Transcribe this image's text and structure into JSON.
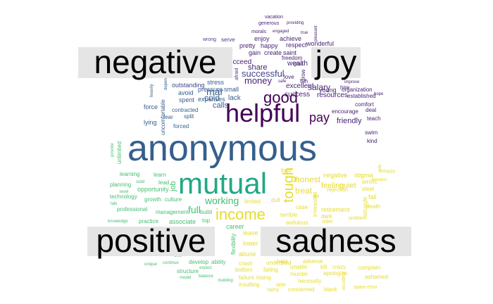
{
  "category_labels": {
    "negative": "negative",
    "joy": "joy",
    "positive": "positive",
    "sadness": "sadness"
  },
  "colors": {
    "dark_purple": "#440154",
    "deep_purple": "#482475",
    "indigo": "#414487",
    "slate_blue": "#355f8d",
    "blue": "#2a788e",
    "teal": "#21918c",
    "green": "#22a884",
    "bright_green": "#44bf70",
    "lime": "#7ad151",
    "yellow": "#e5dc2a",
    "panel_bg": "#e5e5e5"
  },
  "words": [
    {
      "text": "anonymous",
      "color": "#355f8d"
    },
    {
      "text": "helpful",
      "color": "#440154"
    },
    {
      "text": "mutual",
      "color": "#22a884"
    },
    {
      "text": "good",
      "color": "#440154"
    },
    {
      "text": "income",
      "color": "#e5dc2a"
    },
    {
      "text": "tough",
      "color": "#e5dc2a"
    },
    {
      "text": "pay",
      "color": "#440154"
    },
    {
      "text": "money",
      "color": "#482475"
    },
    {
      "text": "successful",
      "color": "#414487"
    },
    {
      "text": "working",
      "color": "#44bf70"
    },
    {
      "text": "full",
      "color": "#44bf70"
    },
    {
      "text": "mar",
      "color": "#355f8d"
    },
    {
      "text": "cold",
      "color": "#355f8d"
    },
    {
      "text": "calls",
      "color": "#355f8d"
    },
    {
      "text": "salary",
      "color": "#482475"
    },
    {
      "text": "friendly",
      "color": "#482475"
    },
    {
      "text": "honest",
      "color": "#e5dc2a"
    },
    {
      "text": "job",
      "color": "#44bf70"
    },
    {
      "text": "treat",
      "color": "#e5dc2a"
    },
    {
      "text": "feeling",
      "color": "#e5dc2a"
    },
    {
      "text": "quiet",
      "color": "#e5dc2a"
    },
    {
      "text": "share",
      "color": "#482475"
    },
    {
      "text": "succeed",
      "color": "#482475"
    },
    {
      "text": "wealth",
      "color": "#482475"
    },
    {
      "text": "excellent",
      "color": "#482475"
    },
    {
      "text": "success",
      "color": "#482475"
    },
    {
      "text": "resources",
      "color": "#482475"
    },
    {
      "text": "lack",
      "color": "#355f8d"
    },
    {
      "text": "small",
      "color": "#355f8d"
    },
    {
      "text": "stress",
      "color": "#355f8d"
    },
    {
      "text": "pressure",
      "color": "#355f8d"
    },
    {
      "text": "expenses",
      "color": "#355f8d"
    },
    {
      "text": "outstanding",
      "color": "#414487"
    },
    {
      "text": "avoid",
      "color": "#355f8d"
    },
    {
      "text": "spent",
      "color": "#355f8d"
    },
    {
      "text": "force",
      "color": "#355f8d"
    },
    {
      "text": "uncomfortable",
      "color": "#355f8d"
    },
    {
      "text": "fear",
      "color": "#355f8d"
    },
    {
      "text": "split",
      "color": "#355f8d"
    },
    {
      "text": "contracted",
      "color": "#355f8d"
    },
    {
      "text": "lying",
      "color": "#355f8d"
    },
    {
      "text": "forced",
      "color": "#355f8d"
    },
    {
      "text": "heavily",
      "color": "#355f8d"
    },
    {
      "text": "dependent",
      "color": "#355f8d"
    },
    {
      "text": "afraid",
      "color": "#414487"
    },
    {
      "text": "love",
      "color": "#482475"
    },
    {
      "text": "young",
      "color": "#482475"
    },
    {
      "text": "organization",
      "color": "#482475"
    },
    {
      "text": "hire",
      "color": "#482475"
    },
    {
      "text": "comfort",
      "color": "#482475"
    },
    {
      "text": "encourage",
      "color": "#482475"
    },
    {
      "text": "improve",
      "color": "#482475"
    },
    {
      "text": "established",
      "color": "#482475"
    },
    {
      "text": "deal",
      "color": "#482475"
    },
    {
      "text": "teach",
      "color": "#482475"
    },
    {
      "text": "swim",
      "color": "#482475"
    },
    {
      "text": "kind",
      "color": "#482475"
    },
    {
      "text": "hope",
      "color": "#482475"
    },
    {
      "text": "fun",
      "color": "#482475"
    },
    {
      "text": "safe",
      "color": "#482475"
    },
    {
      "text": "grow",
      "color": "#482475"
    },
    {
      "text": "glad",
      "color": "#482475"
    },
    {
      "text": "freedom",
      "color": "#482475"
    },
    {
      "text": "gain",
      "color": "#482475"
    },
    {
      "text": "create",
      "color": "#482475"
    },
    {
      "text": "saint",
      "color": "#482475"
    },
    {
      "text": "pretty",
      "color": "#482475"
    },
    {
      "text": "happy",
      "color": "#482475"
    },
    {
      "text": "respect",
      "color": "#482475"
    },
    {
      "text": "enjoy",
      "color": "#482475"
    },
    {
      "text": "achieve",
      "color": "#482475"
    },
    {
      "text": "wonderful",
      "color": "#482475"
    },
    {
      "text": "morals",
      "color": "#482475"
    },
    {
      "text": "engaged",
      "color": "#482475"
    },
    {
      "text": "true",
      "color": "#482475"
    },
    {
      "text": "pleasant",
      "color": "#482475"
    },
    {
      "text": "generous",
      "color": "#482475"
    },
    {
      "text": "providing",
      "color": "#482475"
    },
    {
      "text": "vacation",
      "color": "#482475"
    },
    {
      "text": "wrong",
      "color": "#414487"
    },
    {
      "text": "serve",
      "color": "#414487"
    },
    {
      "text": "bad",
      "color": "#e5dc2a"
    },
    {
      "text": "negative",
      "color": "#e5dc2a"
    },
    {
      "text": "stigma",
      "color": "#e5dc2a"
    },
    {
      "text": "rejection",
      "color": "#e5dc2a"
    },
    {
      "text": "terrific",
      "color": "#e5dc2a"
    },
    {
      "text": "steal",
      "color": "#e5dc2a"
    },
    {
      "text": "fall",
      "color": "#e5dc2a"
    },
    {
      "text": "die",
      "color": "#e5dc2a"
    },
    {
      "text": "retirement",
      "color": "#e5dc2a"
    },
    {
      "text": "death",
      "color": "#e5dc2a"
    },
    {
      "text": "dark",
      "color": "#e5dc2a"
    },
    {
      "text": "older",
      "color": "#e5dc2a"
    },
    {
      "text": "problem",
      "color": "#e5dc2a"
    },
    {
      "text": "terrible",
      "color": "#e5dc2a"
    },
    {
      "text": "awfulous",
      "color": "#e5dc2a"
    },
    {
      "text": "case",
      "color": "#e5dc2a"
    },
    {
      "text": "interested",
      "color": "#e5dc2a"
    },
    {
      "text": "limited",
      "color": "#e5dc2a"
    },
    {
      "text": "dull",
      "color": "#e5dc2a"
    },
    {
      "text": "struggle",
      "color": "#e5dc2a"
    },
    {
      "text": "pity",
      "color": "#e5dc2a"
    },
    {
      "text": "unhappy",
      "color": "#e5dc2a"
    },
    {
      "text": "remains",
      "color": "#e5dc2a"
    },
    {
      "text": "leave",
      "color": "#e5dc2a"
    },
    {
      "text": "lower",
      "color": "#e5dc2a"
    },
    {
      "text": "abuse",
      "color": "#e5dc2a"
    },
    {
      "text": "hate",
      "color": "#e5dc2a"
    },
    {
      "text": "adverse",
      "color": "#e5dc2a"
    },
    {
      "text": "crash",
      "color": "#e5dc2a"
    },
    {
      "text": "underpaid",
      "color": "#e5dc2a"
    },
    {
      "text": "unable",
      "color": "#e5dc2a"
    },
    {
      "text": "kill",
      "color": "#e5dc2a"
    },
    {
      "text": "crazy",
      "color": "#e5dc2a"
    },
    {
      "text": "complain",
      "color": "#e5dc2a"
    },
    {
      "text": "bottom",
      "color": "#e5dc2a"
    },
    {
      "text": "failing",
      "color": "#e5dc2a"
    },
    {
      "text": "murder",
      "color": "#e5dc2a"
    },
    {
      "text": "apologize",
      "color": "#e5dc2a"
    },
    {
      "text": "failure",
      "color": "#e5dc2a"
    },
    {
      "text": "losing",
      "color": "#e5dc2a"
    },
    {
      "text": "necessity",
      "color": "#e5dc2a"
    },
    {
      "text": "accident",
      "color": "#e5dc2a"
    },
    {
      "text": "ashamed",
      "color": "#e5dc2a"
    },
    {
      "text": "insulting",
      "color": "#e5dc2a"
    },
    {
      "text": "debt",
      "color": "#e5dc2a"
    },
    {
      "text": "black",
      "color": "#e5dc2a"
    },
    {
      "text": "rainy",
      "color": "#e5dc2a"
    },
    {
      "text": "concerned",
      "color": "#e5dc2a"
    },
    {
      "text": "spare",
      "color": "#e5dc2a"
    },
    {
      "text": "error",
      "color": "#e5dc2a"
    },
    {
      "text": "career",
      "color": "#44bf70"
    },
    {
      "text": "flexibility",
      "color": "#44bf70"
    },
    {
      "text": "learning",
      "color": "#44bf70"
    },
    {
      "text": "learn",
      "color": "#44bf70"
    },
    {
      "text": "lead",
      "color": "#44bf70"
    },
    {
      "text": "planning",
      "color": "#44bf70"
    },
    {
      "text": "solid",
      "color": "#44bf70"
    },
    {
      "text": "opportunity",
      "color": "#44bf70"
    },
    {
      "text": "technology",
      "color": "#44bf70"
    },
    {
      "text": "level",
      "color": "#44bf70"
    },
    {
      "text": "talk",
      "color": "#44bf70"
    },
    {
      "text": "growth",
      "color": "#44bf70"
    },
    {
      "text": "culture",
      "color": "#44bf70"
    },
    {
      "text": "professional",
      "color": "#44bf70"
    },
    {
      "text": "management",
      "color": "#44bf70"
    },
    {
      "text": "build",
      "color": "#44bf70"
    },
    {
      "text": "knowledge",
      "color": "#44bf70"
    },
    {
      "text": "practice",
      "color": "#44bf70"
    },
    {
      "text": "associate",
      "color": "#44bf70"
    },
    {
      "text": "top",
      "color": "#44bf70"
    },
    {
      "text": "unlimited",
      "color": "#44bf70"
    },
    {
      "text": "provide",
      "color": "#44bf70"
    },
    {
      "text": "offer",
      "color": "#44bf70"
    },
    {
      "text": "develop",
      "color": "#44bf70"
    },
    {
      "text": "ability",
      "color": "#44bf70"
    },
    {
      "text": "continue",
      "color": "#44bf70"
    },
    {
      "text": "unique",
      "color": "#44bf70"
    },
    {
      "text": "structure",
      "color": "#44bf70"
    },
    {
      "text": "expect",
      "color": "#44bf70"
    },
    {
      "text": "model",
      "color": "#44bf70"
    },
    {
      "text": "balance",
      "color": "#44bf70"
    },
    {
      "text": "building",
      "color": "#44bf70"
    }
  ]
}
